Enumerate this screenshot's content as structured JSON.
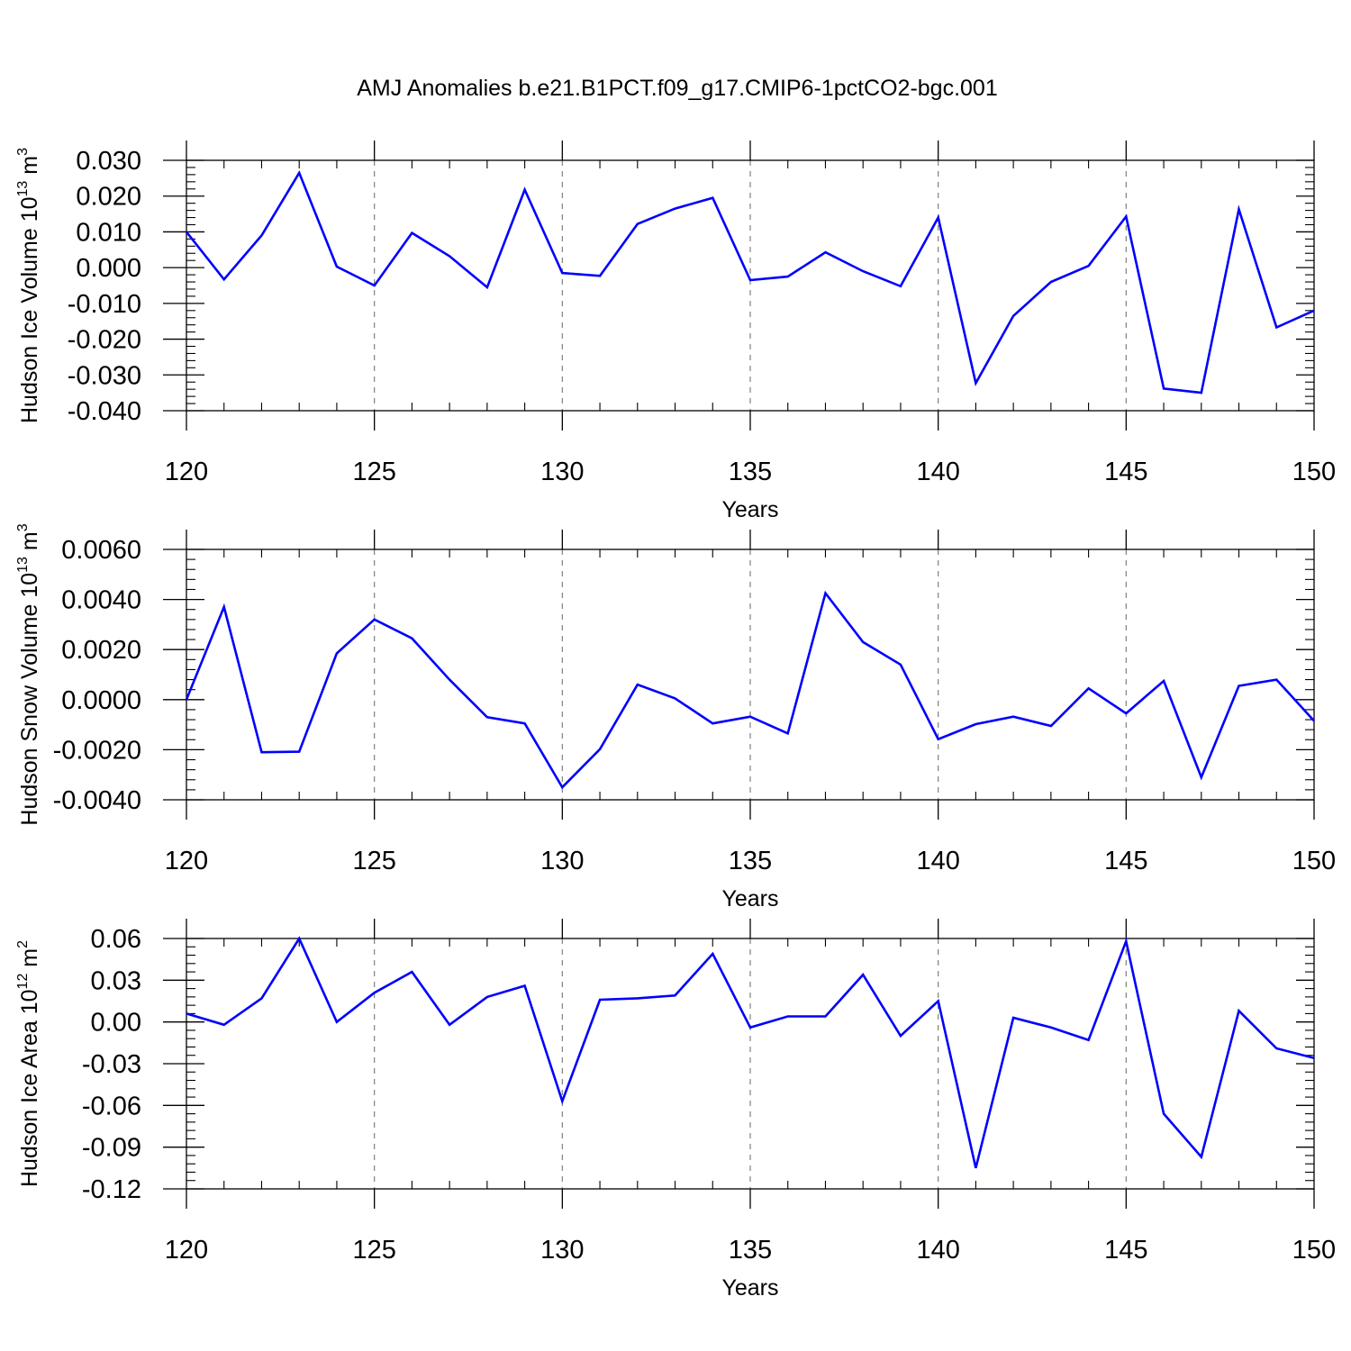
{
  "title": "AMJ Anomalies b.e21.B1PCT.f09_g17.CMIP6-1pctCO2-bgc.001",
  "colors": {
    "line": "#0000ff",
    "axes": "#000000",
    "grid": "#808080"
  },
  "chart_data": [
    {
      "type": "line",
      "xlabel": "Years",
      "ylabel": {
        "base": "Hudson Ice Volume 10",
        "exp": "13",
        "unit": " m",
        "unit_exp": "3"
      },
      "xlim": [
        120,
        150
      ],
      "ylim": [
        -0.04,
        0.03
      ],
      "xticks": [
        120,
        125,
        130,
        135,
        140,
        145,
        150
      ],
      "xtick_labels": [
        "120",
        "125",
        "130",
        "135",
        "140",
        "145",
        "150"
      ],
      "yticks": [
        0.03,
        0.02,
        0.01,
        0.0,
        -0.01,
        -0.02,
        -0.03,
        -0.04
      ],
      "ytick_labels": [
        "0.030",
        "0.020",
        "0.010",
        "0.000",
        "-0.010",
        "-0.020",
        "-0.030",
        "-0.040"
      ],
      "grid": "vertical dashed at major x ticks",
      "x": [
        120,
        121,
        122,
        123,
        124,
        125,
        126,
        127,
        128,
        129,
        130,
        131,
        132,
        133,
        134,
        135,
        136,
        137,
        138,
        139,
        140,
        141,
        142,
        143,
        144,
        145,
        146,
        147,
        148,
        149,
        150
      ],
      "values": [
        0.01,
        -0.0033,
        0.009,
        0.0265,
        0.0003,
        -0.005,
        0.0097,
        0.0032,
        -0.0055,
        0.0218,
        -0.0015,
        -0.0023,
        0.0122,
        0.0165,
        0.0195,
        -0.0035,
        -0.0025,
        0.0043,
        -0.001,
        -0.0052,
        0.014,
        -0.0323,
        -0.0135,
        -0.004,
        0.0005,
        0.0143,
        -0.0338,
        -0.035,
        0.0163,
        -0.0167,
        -0.012
      ]
    },
    {
      "type": "line",
      "xlabel": "Years",
      "ylabel": {
        "base": "Hudson Snow Volume 10",
        "exp": "13",
        "unit": " m",
        "unit_exp": "3"
      },
      "xlim": [
        120,
        150
      ],
      "ylim": [
        -0.004,
        0.006
      ],
      "xticks": [
        120,
        125,
        130,
        135,
        140,
        145,
        150
      ],
      "xtick_labels": [
        "120",
        "125",
        "130",
        "135",
        "140",
        "145",
        "150"
      ],
      "yticks": [
        0.006,
        0.004,
        0.002,
        0.0,
        -0.002,
        -0.004
      ],
      "ytick_labels": [
        "0.0060",
        "0.0040",
        "0.0020",
        "0.0000",
        "-0.0020",
        "-0.0040"
      ],
      "grid": "vertical dashed at major x ticks",
      "x": [
        120,
        121,
        122,
        123,
        124,
        125,
        126,
        127,
        128,
        129,
        130,
        131,
        132,
        133,
        134,
        135,
        136,
        137,
        138,
        139,
        140,
        141,
        142,
        143,
        144,
        145,
        146,
        147,
        148,
        149,
        150
      ],
      "values": [
        0.0,
        0.0037,
        -0.0021,
        -0.00208,
        0.00185,
        0.0032,
        0.00245,
        0.0008,
        -0.0007,
        -0.00095,
        -0.0035,
        -0.00198,
        0.0006,
        5e-05,
        -0.00095,
        -0.00068,
        -0.00135,
        0.00425,
        0.0023,
        0.0014,
        -0.00158,
        -0.00098,
        -0.00068,
        -0.00105,
        0.00045,
        -0.00055,
        0.00075,
        -0.0031,
        0.00055,
        0.0008,
        -0.00085
      ]
    },
    {
      "type": "line",
      "xlabel": "Years",
      "ylabel": {
        "base": "Hudson Ice Area 10",
        "exp": "12",
        "unit": " m",
        "unit_exp": "2"
      },
      "xlim": [
        120,
        150
      ],
      "ylim": [
        -0.12,
        0.06
      ],
      "xticks": [
        120,
        125,
        130,
        135,
        140,
        145,
        150
      ],
      "xtick_labels": [
        "120",
        "125",
        "130",
        "135",
        "140",
        "145",
        "150"
      ],
      "yticks": [
        0.06,
        0.03,
        0.0,
        -0.03,
        -0.06,
        -0.09,
        -0.12
      ],
      "ytick_labels": [
        "0.06",
        "0.03",
        "0.00",
        "-0.03",
        "-0.06",
        "-0.09",
        "-0.12"
      ],
      "grid": "vertical dashed at major x ticks",
      "x": [
        120,
        121,
        122,
        123,
        124,
        125,
        126,
        127,
        128,
        129,
        130,
        131,
        132,
        133,
        134,
        135,
        136,
        137,
        138,
        139,
        140,
        141,
        142,
        143,
        144,
        145,
        146,
        147,
        148,
        149,
        150
      ],
      "values": [
        0.006,
        -0.002,
        0.017,
        0.06,
        0.0,
        0.021,
        0.036,
        -0.002,
        0.018,
        0.026,
        -0.057,
        0.016,
        0.017,
        0.019,
        0.049,
        -0.004,
        0.004,
        0.004,
        0.034,
        -0.01,
        0.015,
        -0.105,
        0.003,
        -0.004,
        -0.013,
        0.058,
        -0.066,
        -0.097,
        0.008,
        -0.019,
        -0.026
      ]
    }
  ]
}
